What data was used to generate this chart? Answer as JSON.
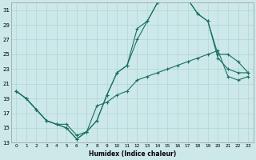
{
  "xlabel": "Humidex (Indice chaleur)",
  "bg_color": "#cce8e8",
  "grid_color": "#aacfcf",
  "line_color": "#1a7060",
  "xlim": [
    -0.5,
    23.5
  ],
  "ylim": [
    13,
    32
  ],
  "yticks": [
    13,
    15,
    17,
    19,
    21,
    23,
    25,
    27,
    29,
    31
  ],
  "xticks": [
    0,
    1,
    2,
    3,
    4,
    5,
    6,
    7,
    8,
    9,
    10,
    11,
    12,
    13,
    14,
    15,
    16,
    17,
    18,
    19,
    20,
    21,
    22,
    23
  ],
  "line1_x": [
    0,
    1,
    2,
    3,
    4,
    5,
    6,
    7,
    8,
    9,
    10,
    11,
    12,
    13,
    14,
    15,
    16,
    17,
    18,
    19,
    20,
    21,
    22,
    23
  ],
  "line1_y": [
    20,
    19,
    17.5,
    16,
    15.5,
    15,
    13.5,
    14.5,
    16,
    19.5,
    22.5,
    23.5,
    28.5,
    29.5,
    32,
    32.5,
    32.5,
    32.5,
    30.5,
    29.5,
    24.5,
    23,
    22.5,
    22.5
  ],
  "line2_x": [
    0,
    1,
    2,
    3,
    4,
    5,
    6,
    7,
    8,
    9,
    10,
    11,
    12,
    13,
    14,
    15,
    16,
    17,
    18,
    19,
    20,
    21,
    22,
    23
  ],
  "line2_y": [
    20,
    19,
    17.5,
    16,
    15.5,
    15,
    13.5,
    14.5,
    16,
    19.5,
    22.5,
    23.5,
    27,
    29.5,
    32,
    32.5,
    32.5,
    32.5,
    30.5,
    29.5,
    25,
    25,
    24,
    22.5
  ],
  "line3_x": [
    0,
    1,
    2,
    3,
    4,
    5,
    6,
    7,
    8,
    9,
    10,
    11,
    12,
    13,
    14,
    15,
    16,
    17,
    18,
    19,
    20,
    21,
    22,
    23
  ],
  "line3_y": [
    20,
    19,
    17.5,
    16,
    15.5,
    15.5,
    14,
    14.5,
    18,
    18.5,
    19.5,
    20,
    21.5,
    22,
    22.5,
    23,
    23.5,
    24,
    24.5,
    25,
    25.5,
    22,
    21.5,
    22
  ]
}
